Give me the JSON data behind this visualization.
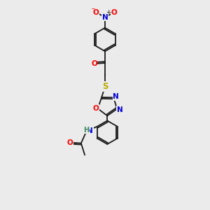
{
  "background_color": "#ebebeb",
  "bond_color": "#1a1a1a",
  "atom_colors": {
    "O": "#ff0000",
    "N": "#0000dd",
    "S": "#bbaa00",
    "H": "#3a8a5a",
    "C": "#1a1a1a"
  },
  "figsize": [
    3.0,
    3.0
  ],
  "dpi": 100
}
